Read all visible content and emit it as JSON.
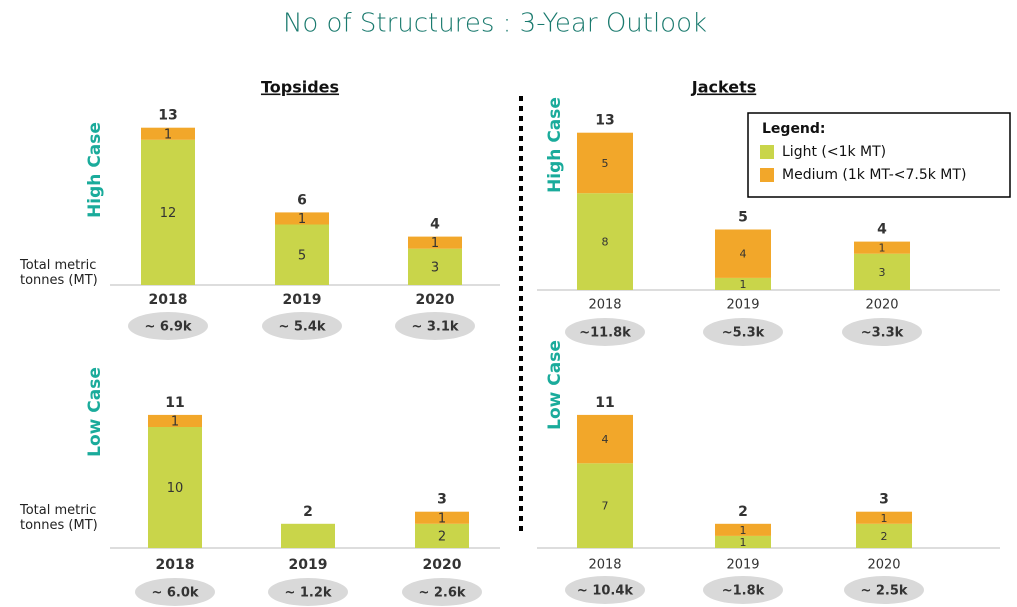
{
  "title": "No of Structures : 3-Year Outlook",
  "sections": [
    "Topsides",
    "Jackets"
  ],
  "cases": [
    "High Case",
    "Low Case"
  ],
  "mt_label": "Total metric tonnes (MT)",
  "legend": {
    "title": "Legend:",
    "items": [
      {
        "name": "Light (<1k MT)",
        "color": "#c9d54a"
      },
      {
        "name": "Medium (1k MT-<7.5k MT)",
        "color": "#f2a72a"
      }
    ]
  },
  "chart_data": [
    {
      "type": "bar",
      "stacked": true,
      "categories": [
        "2018",
        "2019",
        "2020"
      ],
      "series": [
        {
          "color": "#c9d54a",
          "values": [
            12,
            5,
            3
          ]
        },
        {
          "color": "#f2a72a",
          "values": [
            1,
            1,
            1
          ]
        }
      ],
      "totals": [
        13,
        6,
        4
      ],
      "tonnage_labels": [
        "~ 6.9k",
        "~ 5.4k",
        "~ 3.1k"
      ]
    },
    {
      "type": "bar",
      "stacked": true,
      "categories": [
        "2018",
        "2019",
        "2020"
      ],
      "series": [
        {
          "color": "#c9d54a",
          "values": [
            10,
            2,
            2
          ],
          "value_labels": [
            "10",
            null,
            "2"
          ]
        },
        {
          "color": "#f2a72a",
          "values": [
            1,
            0,
            1
          ],
          "value_labels": [
            "1",
            null,
            "1"
          ]
        }
      ],
      "totals": [
        11,
        2,
        3
      ],
      "tonnage_labels": [
        "~ 6.0k",
        "~ 1.2k",
        "~ 2.6k"
      ]
    },
    {
      "type": "bar",
      "stacked": true,
      "categories": [
        "2018",
        "2019",
        "2020"
      ],
      "series": [
        {
          "color": "#c9d54a",
          "values": [
            8,
            1,
            3
          ]
        },
        {
          "color": "#f2a72a",
          "values": [
            5,
            4,
            1
          ]
        }
      ],
      "totals": [
        13,
        5,
        4
      ],
      "tonnage_labels": [
        "~11.8k",
        "~5.3k",
        "~3.3k"
      ]
    },
    {
      "type": "bar",
      "stacked": true,
      "categories": [
        "2018",
        "2019",
        "2020"
      ],
      "series": [
        {
          "color": "#c9d54a",
          "values": [
            7,
            1,
            2
          ]
        },
        {
          "color": "#f2a72a",
          "values": [
            4,
            1,
            1
          ]
        }
      ],
      "totals": [
        11,
        2,
        3
      ],
      "tonnage_labels": [
        "~ 10.4k",
        "~1.8k",
        "~ 2.5k"
      ]
    }
  ]
}
